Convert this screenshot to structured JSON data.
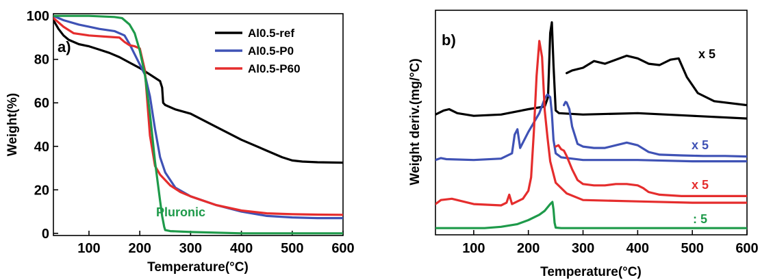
{
  "chart_data": [
    {
      "type": "line",
      "panel_label": "a)",
      "xlabel": "Temperature(°C)",
      "ylabel": "Weight(%)",
      "xlim": [
        30,
        600
      ],
      "ylim": [
        -1,
        101
      ],
      "xticks": [
        100,
        200,
        300,
        400,
        500,
        600
      ],
      "yticks": [
        0,
        20,
        40,
        60,
        80,
        100
      ],
      "grid": false,
      "legend_position": "top-right",
      "series": [
        {
          "name": "Al0.5-ref",
          "color": "#000000",
          "x": [
            30,
            40,
            50,
            60,
            80,
            100,
            120,
            140,
            160,
            180,
            200,
            220,
            240,
            244,
            246,
            250,
            270,
            300,
            350,
            400,
            450,
            480,
            500,
            520,
            550,
            600
          ],
          "y": [
            98,
            94,
            91,
            89,
            87,
            86,
            84.5,
            83,
            81,
            78.5,
            76,
            73,
            70,
            67,
            60,
            59,
            57,
            55,
            49,
            43,
            38,
            35,
            33.5,
            33,
            32.7,
            32.5
          ]
        },
        {
          "name": "Al0.5-P0",
          "color": "#3f52b5",
          "x": [
            30,
            50,
            80,
            120,
            150,
            170,
            180,
            195,
            210,
            220,
            230,
            240,
            250,
            270,
            300,
            350,
            400,
            450,
            500,
            550,
            600
          ],
          "y": [
            100,
            98,
            96,
            94,
            93,
            91,
            87,
            80,
            73,
            63,
            48,
            35,
            28,
            21,
            17,
            13,
            10,
            8,
            7.3,
            7,
            7
          ]
        },
        {
          "name": "Al0.5-P60",
          "color": "#e52d2d",
          "x": [
            30,
            50,
            70,
            100,
            130,
            160,
            170,
            180,
            190,
            200,
            210,
            220,
            230,
            240,
            260,
            280,
            300,
            350,
            400,
            450,
            500,
            550,
            600
          ],
          "y": [
            99,
            95,
            92,
            91,
            90.5,
            90,
            88,
            86.5,
            86,
            85,
            75,
            45,
            31,
            27,
            22,
            19,
            17,
            13,
            10.5,
            9.2,
            8.8,
            8.6,
            8.5
          ]
        },
        {
          "name": "Pluronic",
          "color": "#1e9a4a",
          "x": [
            30,
            100,
            150,
            165,
            180,
            190,
            200,
            210,
            220,
            230,
            240,
            244,
            248,
            250,
            260,
            300,
            400,
            600
          ],
          "y": [
            100,
            100,
            99.5,
            99,
            96,
            92,
            84,
            73,
            55,
            33,
            15,
            8,
            3,
            1.5,
            1,
            0.6,
            0,
            0
          ]
        }
      ]
    },
    {
      "type": "line",
      "panel_label": "b)",
      "xlabel": "Temperature(°C)",
      "ylabel": "Weight deriv.(mg/°C)",
      "xlim": [
        30,
        600
      ],
      "xticks": [
        100,
        200,
        300,
        400,
        500,
        600
      ],
      "yticks": [],
      "grid": false,
      "annotations": [
        {
          "text": "x 5",
          "color": "#000000"
        },
        {
          "text": "x 5",
          "color": "#3f52b5"
        },
        {
          "text": "x 5",
          "color": "#e52d2d"
        },
        {
          "text": ": 5",
          "color": "#1e9a4a"
        }
      ],
      "series": [
        {
          "color": "#000000",
          "x": [
            30,
            45,
            55,
            70,
            100,
            150,
            200,
            230,
            236,
            240,
            243,
            246,
            250,
            256,
            300,
            400,
            500,
            600
          ],
          "y": [
            1.15,
            1.3,
            1.35,
            1.2,
            1.1,
            1.15,
            1.35,
            1.45,
            1.8,
            4.2,
            4.6,
            3.0,
            1.3,
            1.2,
            1.15,
            1.2,
            1.1,
            1.0
          ]
        },
        {
          "color": "#000000",
          "x": [
            270,
            280,
            300,
            320,
            340,
            360,
            380,
            400,
            420,
            440,
            460,
            475,
            490,
            510,
            540,
            600
          ],
          "y": [
            2.7,
            2.8,
            2.9,
            3.15,
            3.05,
            3.2,
            3.35,
            3.25,
            3.05,
            3.0,
            3.2,
            3.25,
            2.55,
            1.95,
            1.65,
            1.5
          ]
        },
        {
          "color": "#3f52b5",
          "x": [
            30,
            40,
            50,
            100,
            150,
            170,
            175,
            180,
            185,
            190,
            200,
            210,
            220,
            230,
            235,
            240,
            243,
            246,
            250,
            260,
            300,
            400,
            500,
            600
          ],
          "y": [
            -0.55,
            -0.48,
            -0.52,
            -0.55,
            -0.5,
            -0.3,
            0.4,
            0.6,
            -0.1,
            0.1,
            0.5,
            0.85,
            1.2,
            1.75,
            1.9,
            1.8,
            1.2,
            0.2,
            -0.3,
            -0.45,
            -0.55,
            -0.55,
            -0.6,
            -0.6
          ]
        },
        {
          "color": "#3f52b5",
          "x": [
            265,
            268,
            270,
            275,
            280,
            290,
            300,
            320,
            340,
            360,
            380,
            400,
            420,
            440,
            480,
            520,
            560,
            600
          ],
          "y": [
            1.5,
            1.62,
            1.6,
            1.35,
            0.7,
            0.05,
            -0.05,
            -0.1,
            -0.1,
            0.0,
            0.1,
            0.0,
            -0.25,
            -0.35,
            -0.38,
            -0.4,
            -0.4,
            -0.42
          ]
        },
        {
          "color": "#e52d2d",
          "x": [
            30,
            40,
            60,
            100,
            150,
            160,
            165,
            170,
            180,
            190,
            200,
            205,
            210,
            215,
            220,
            225,
            230,
            235,
            240,
            250,
            270,
            300,
            400,
            500,
            600
          ],
          "y": [
            -2.2,
            -2.05,
            -2.0,
            -2.2,
            -2.25,
            -2.15,
            -1.85,
            -2.2,
            -2.1,
            -2.0,
            -1.7,
            -1.2,
            0.5,
            2.6,
            3.9,
            3.3,
            1.3,
            0.3,
            -0.6,
            -1.4,
            -1.8,
            -2.05,
            -2.1,
            -2.15,
            -2.15
          ]
        },
        {
          "color": "#e52d2d",
          "x": [
            250,
            255,
            260,
            265,
            270,
            280,
            290,
            300,
            320,
            340,
            360,
            380,
            400,
            410,
            420,
            440,
            480,
            520,
            560,
            600
          ],
          "y": [
            -0.05,
            0.0,
            -0.15,
            -0.2,
            -0.4,
            -0.9,
            -1.3,
            -1.45,
            -1.5,
            -1.5,
            -1.45,
            -1.45,
            -1.5,
            -1.6,
            -1.75,
            -1.85,
            -1.9,
            -1.9,
            -1.9,
            -1.9
          ]
        },
        {
          "color": "#1e9a4a",
          "x": [
            30,
            80,
            120,
            150,
            180,
            200,
            220,
            230,
            240,
            244,
            246,
            248,
            250,
            260,
            300,
            400,
            500,
            600
          ],
          "y": [
            -3.1,
            -3.1,
            -3.1,
            -3.05,
            -2.95,
            -2.8,
            -2.6,
            -2.45,
            -2.2,
            -2.12,
            -2.4,
            -2.9,
            -3.08,
            -3.1,
            -3.1,
            -3.1,
            -3.1,
            -3.1
          ]
        }
      ]
    }
  ]
}
